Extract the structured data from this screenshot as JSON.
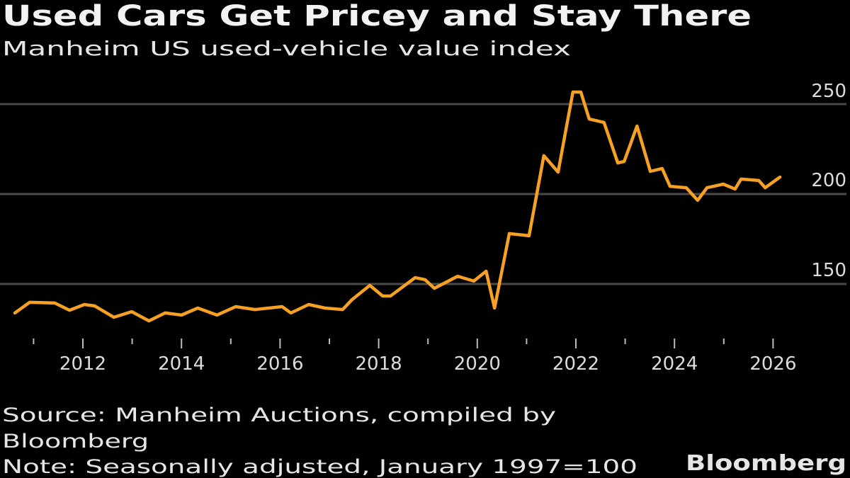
{
  "header": {
    "title": "Used Cars Get Pricey and Stay There",
    "subtitle": "Manheim US used-vehicle value index"
  },
  "footer": {
    "source_line1": "Source: Manheim Auctions, compiled by",
    "source_line2": "Bloomberg",
    "note": "Note: Seasonally adjusted, January 1997=100",
    "logo": "Bloomberg"
  },
  "colors": {
    "background": "#000000",
    "line": "#f7a124",
    "grid": "#4a4a4a",
    "text": "#e6e6e6"
  },
  "chart_data": {
    "type": "line",
    "title": "Used Cars Get Pricey and Stay There",
    "subtitle": "Manheim US used-vehicle value index",
    "xlabel": "",
    "ylabel": "",
    "xlim": [
      2010.5,
      2026.3
    ],
    "ylim": [
      121,
      262
    ],
    "grid": true,
    "y_axis_side": "right",
    "x_ticks": [
      "2012",
      "2014",
      "2016",
      "2018",
      "2020",
      "2022",
      "2024",
      "2026"
    ],
    "y_ticks": [
      "150",
      "200",
      "250"
    ],
    "series": [
      {
        "x": [
          2010.62,
          2010.92,
          2011.43,
          2011.73,
          2012.03,
          2012.24,
          2012.63,
          2012.99,
          2013.34,
          2013.67,
          2014.0,
          2014.33,
          2014.72,
          2015.1,
          2015.49,
          2016.04,
          2016.22,
          2016.58,
          2016.91,
          2017.27,
          2017.46,
          2017.82,
          2018.08,
          2018.24,
          2018.74,
          2018.94,
          2019.13,
          2019.6,
          2019.93,
          2020.18,
          2020.35,
          2020.45,
          2020.65,
          2021.05,
          2021.35,
          2021.64,
          2021.94,
          2022.1,
          2022.27,
          2022.57,
          2022.85,
          2022.98,
          2023.24,
          2023.51,
          2023.75,
          2023.91,
          2024.24,
          2024.47,
          2024.66,
          2024.99,
          2025.23,
          2025.35,
          2025.71,
          2025.84,
          2026.14
        ],
        "y": [
          133.9,
          139.8,
          139.4,
          135.4,
          138.6,
          137.8,
          131.5,
          134.6,
          129.5,
          133.9,
          132.7,
          136.6,
          132.7,
          137.4,
          135.8,
          137.4,
          133.9,
          138.6,
          136.6,
          135.8,
          141.3,
          149.2,
          143.3,
          143.3,
          153.5,
          152.4,
          147.6,
          154.3,
          151.6,
          157.1,
          136.6,
          150.4,
          178.0,
          176.8,
          221.3,
          212.2,
          256.7,
          256.7,
          241.7,
          239.8,
          217.3,
          218.1,
          237.8,
          212.6,
          214.2,
          204.3,
          203.5,
          196.5,
          203.5,
          205.5,
          202.8,
          208.3,
          207.5,
          203.5,
          209.4
        ]
      }
    ]
  }
}
